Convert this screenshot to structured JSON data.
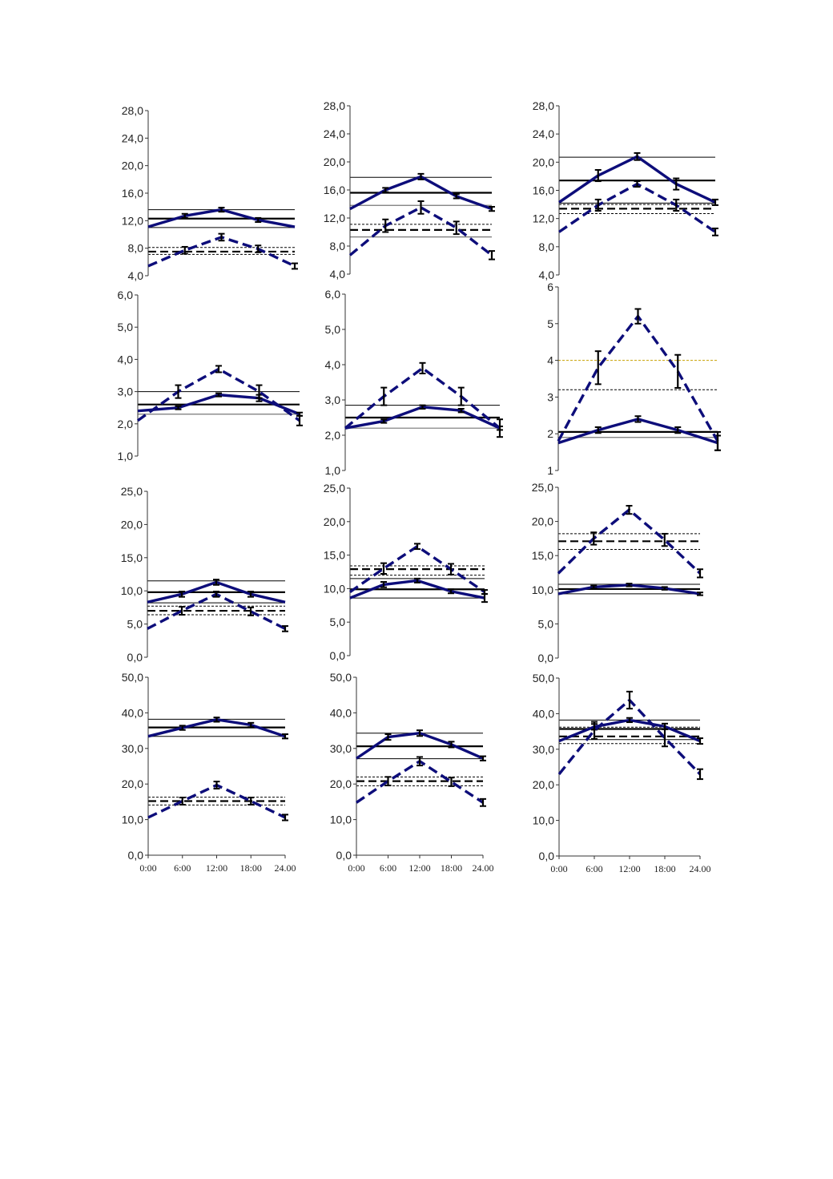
{
  "colors": {
    "series": "#0d0d7a",
    "ref": "#000000",
    "ref_gray": "#777777",
    "ref_yellow": "#c8a000"
  },
  "x_tick_labels": {
    "left": [
      "0:00",
      "6:00",
      "12:00",
      "18:00",
      "24.00"
    ],
    "middle": [
      "0:00",
      "6:00",
      "12:00",
      "18:00",
      "24.00"
    ],
    "right": [
      "0:00",
      "6:00",
      "12:00",
      "18:00",
      "24.00"
    ]
  },
  "chart_data": [
    {
      "type": "line",
      "ylim": [
        4,
        28
      ],
      "yticks": [
        "4,0",
        "8,0",
        "12,0",
        "16,0",
        "20,0",
        "24,0",
        "28,0"
      ],
      "x": [
        0,
        6,
        12,
        18,
        24
      ],
      "series": [
        {
          "style": "solid",
          "values": [
            11.1,
            12.7,
            13.6,
            12.1,
            11.1
          ],
          "errors": [
            0,
            0.3,
            0.3,
            0.3,
            0
          ]
        },
        {
          "style": "dashed",
          "values": [
            5.4,
            7.7,
            9.6,
            7.9,
            5.4
          ],
          "errors": [
            0,
            0.5,
            0.5,
            0.5,
            0.4
          ]
        }
      ],
      "refs": [
        {
          "y": 13.6,
          "style": "thin"
        },
        {
          "y": 12.3,
          "style": "thick"
        },
        {
          "y": 11.0,
          "style": "thin"
        },
        {
          "y": 8.1,
          "style": "thin-dashed"
        },
        {
          "y": 7.5,
          "style": "thick-dashed"
        },
        {
          "y": 7.1,
          "style": "thin-dashed"
        }
      ]
    },
    {
      "type": "line",
      "ylim": [
        4,
        28
      ],
      "yticks": [
        "4,0",
        "8,0",
        "12,0",
        "16,0",
        "20,0",
        "24,0",
        "28,0"
      ],
      "x": [
        0,
        6,
        12,
        18,
        24
      ],
      "series": [
        {
          "style": "solid",
          "values": [
            13.3,
            16.0,
            17.9,
            15.1,
            13.3
          ],
          "errors": [
            0,
            0.3,
            0.4,
            0.3,
            0.3
          ]
        },
        {
          "style": "dashed",
          "values": [
            6.7,
            10.9,
            13.5,
            10.6,
            6.7
          ],
          "errors": [
            0,
            0.9,
            0.9,
            0.9,
            0.6
          ]
        }
      ],
      "refs": [
        {
          "y": 17.8,
          "style": "thin"
        },
        {
          "y": 15.6,
          "style": "thick"
        },
        {
          "y": 13.8,
          "style": "thin-gray"
        },
        {
          "y": 11.1,
          "style": "thin-dashed"
        },
        {
          "y": 10.3,
          "style": "thick-dashed"
        },
        {
          "y": 9.3,
          "style": "thin-gray"
        }
      ]
    },
    {
      "type": "line",
      "ylim": [
        4,
        28
      ],
      "yticks": [
        "4,0",
        "8,0",
        "12,0",
        "16,0",
        "20,0",
        "24,0",
        "28,0"
      ],
      "x": [
        0,
        6,
        12,
        18,
        24
      ],
      "series": [
        {
          "style": "solid",
          "values": [
            14.3,
            18.1,
            20.8,
            16.9,
            14.3
          ],
          "errors": [
            0,
            0.8,
            0.5,
            0.8,
            0.4
          ]
        },
        {
          "style": "dashed",
          "values": [
            10.1,
            13.9,
            16.9,
            13.9,
            10.1
          ],
          "errors": [
            0,
            0.8,
            0.4,
            0.8,
            0.5
          ]
        }
      ],
      "refs": [
        {
          "y": 20.7,
          "style": "thin"
        },
        {
          "y": 17.4,
          "style": "thick"
        },
        {
          "y": 14.2,
          "style": "thin"
        },
        {
          "y": 14.0,
          "style": "thin-dashed"
        },
        {
          "y": 13.4,
          "style": "thick-dashed"
        },
        {
          "y": 12.7,
          "style": "thin-dashed"
        }
      ]
    },
    {
      "type": "line",
      "ylim": [
        1,
        6
      ],
      "yticks": [
        "1,0",
        "2,0",
        "3,0",
        "4,0",
        "5,0",
        "6,0"
      ],
      "x": [
        0,
        6,
        12,
        18,
        24
      ],
      "series": [
        {
          "style": "solid",
          "values": [
            2.4,
            2.5,
            2.9,
            2.8,
            2.3
          ],
          "errors": [
            0,
            0.05,
            0.05,
            0.1,
            0.05
          ]
        },
        {
          "style": "dashed",
          "values": [
            2.1,
            3.0,
            3.7,
            3.0,
            2.1
          ],
          "errors": [
            0,
            0.2,
            0.1,
            0.2,
            0.15
          ]
        }
      ],
      "refs": [
        {
          "y": 3.0,
          "style": "thin"
        },
        {
          "y": 2.6,
          "style": "thick"
        },
        {
          "y": 2.3,
          "style": "thin-gray"
        }
      ]
    },
    {
      "type": "line",
      "ylim": [
        1,
        6
      ],
      "yticks": [
        "1,0",
        "2,0",
        "3,0",
        "4,0",
        "5,0",
        "6,0"
      ],
      "x": [
        0,
        6,
        12,
        18,
        24
      ],
      "series": [
        {
          "style": "solid",
          "values": [
            2.2,
            2.4,
            2.8,
            2.7,
            2.2
          ],
          "errors": [
            0,
            0.05,
            0.05,
            0.05,
            0.05
          ]
        },
        {
          "style": "dashed",
          "values": [
            2.2,
            3.1,
            3.9,
            3.1,
            2.2
          ],
          "errors": [
            0,
            0.25,
            0.15,
            0.25,
            0.25
          ]
        }
      ],
      "refs": [
        {
          "y": 2.85,
          "style": "thin"
        },
        {
          "y": 2.5,
          "style": "thick"
        },
        {
          "y": 2.2,
          "style": "thin-gray"
        }
      ]
    },
    {
      "type": "line",
      "ylim": [
        1,
        6
      ],
      "yticks": [
        "1",
        "2",
        "3",
        "4",
        "5",
        "6"
      ],
      "x": [
        0,
        6,
        12,
        18,
        24
      ],
      "series": [
        {
          "style": "solid",
          "values": [
            1.75,
            2.1,
            2.4,
            2.1,
            1.75
          ],
          "errors": [
            0,
            0.08,
            0.08,
            0.08,
            0.2
          ]
        },
        {
          "style": "dashed",
          "values": [
            1.8,
            3.8,
            5.2,
            3.7,
            1.8
          ],
          "errors": [
            0,
            0.45,
            0.2,
            0.45,
            0.25
          ]
        }
      ],
      "refs": [
        {
          "y": 4.0,
          "style": "thin-yellow"
        },
        {
          "y": 3.2,
          "style": "thin-dashed"
        },
        {
          "y": 2.05,
          "style": "thick"
        },
        {
          "y": 1.9,
          "style": "thin-gray"
        }
      ]
    },
    {
      "type": "line",
      "ylim": [
        0,
        25
      ],
      "yticks": [
        "0,0",
        "5,0",
        "10,0",
        "15,0",
        "20,0",
        "25,0"
      ],
      "x": [
        0,
        6,
        12,
        18,
        24
      ],
      "series": [
        {
          "style": "solid",
          "values": [
            8.3,
            9.5,
            11.3,
            9.5,
            8.3
          ],
          "errors": [
            0,
            0.4,
            0.4,
            0.4,
            0
          ]
        },
        {
          "style": "dashed",
          "values": [
            4.3,
            7.0,
            9.5,
            6.9,
            4.3
          ],
          "errors": [
            0,
            0.6,
            0.4,
            0.6,
            0.4
          ]
        }
      ],
      "refs": [
        {
          "y": 11.5,
          "style": "thin"
        },
        {
          "y": 9.8,
          "style": "thick"
        },
        {
          "y": 8.2,
          "style": "thin"
        },
        {
          "y": 7.7,
          "style": "thin-dashed"
        },
        {
          "y": 7.0,
          "style": "thick-dashed"
        },
        {
          "y": 6.4,
          "style": "thin-dashed"
        }
      ]
    },
    {
      "type": "line",
      "ylim": [
        0,
        25
      ],
      "yticks": [
        "0,0",
        "5,0",
        "10,0",
        "15,0",
        "20,0",
        "25,0"
      ],
      "x": [
        0,
        6,
        12,
        18,
        24
      ],
      "series": [
        {
          "style": "solid",
          "values": [
            8.6,
            10.6,
            11.2,
            9.6,
            8.6
          ],
          "errors": [
            0,
            0.4,
            0.3,
            0.3,
            0.6
          ]
        },
        {
          "style": "dashed",
          "values": [
            9.5,
            13.0,
            16.3,
            12.9,
            9.5
          ],
          "errors": [
            0,
            0.8,
            0.4,
            0.8,
            0.3
          ]
        }
      ],
      "refs": [
        {
          "y": 13.4,
          "style": "thin-dashed"
        },
        {
          "y": 12.9,
          "style": "thick-dashed"
        },
        {
          "y": 12.0,
          "style": "thin-dashed"
        },
        {
          "y": 11.5,
          "style": "thin"
        },
        {
          "y": 9.9,
          "style": "thick"
        },
        {
          "y": 8.6,
          "style": "thin"
        }
      ]
    },
    {
      "type": "line",
      "ylim": [
        0,
        25
      ],
      "yticks": [
        "0,0",
        "5,0",
        "10,0",
        "15,0",
        "20,0",
        "25,0"
      ],
      "x": [
        0,
        6,
        12,
        18,
        24
      ],
      "series": [
        {
          "style": "solid",
          "values": [
            9.4,
            10.4,
            10.7,
            10.2,
            9.4
          ],
          "errors": [
            0,
            0.2,
            0.2,
            0.2,
            0.2
          ]
        },
        {
          "style": "dashed",
          "values": [
            12.4,
            17.5,
            21.7,
            17.3,
            12.4
          ],
          "errors": [
            0,
            0.9,
            0.6,
            0.9,
            0.6
          ]
        }
      ],
      "refs": [
        {
          "y": 18.2,
          "style": "thin-dashed"
        },
        {
          "y": 17.1,
          "style": "thick-dashed"
        },
        {
          "y": 15.9,
          "style": "thin-dashed"
        },
        {
          "y": 10.8,
          "style": "thin"
        },
        {
          "y": 10.1,
          "style": "thick"
        },
        {
          "y": 9.4,
          "style": "thin"
        }
      ]
    },
    {
      "type": "line",
      "ylim": [
        0,
        50
      ],
      "yticks": [
        "0,0",
        "10,0",
        "20,0",
        "30,0",
        "40,0",
        "50,0"
      ],
      "x": [
        0,
        6,
        12,
        18,
        24
      ],
      "series": [
        {
          "style": "solid",
          "values": [
            33.4,
            35.8,
            38.1,
            36.6,
            33.4
          ],
          "errors": [
            0,
            0.6,
            0.6,
            0.6,
            0.6
          ]
        },
        {
          "style": "dashed",
          "values": [
            10.6,
            15.2,
            19.7,
            15.2,
            10.6
          ],
          "errors": [
            0,
            1.0,
            1.0,
            1.0,
            0.8
          ]
        }
      ],
      "refs": [
        {
          "y": 38.2,
          "style": "thin"
        },
        {
          "y": 35.9,
          "style": "thick"
        },
        {
          "y": 33.4,
          "style": "thin"
        },
        {
          "y": 16.3,
          "style": "thin-dashed"
        },
        {
          "y": 15.2,
          "style": "thick-dashed"
        },
        {
          "y": 14.1,
          "style": "thin-dashed"
        }
      ]
    },
    {
      "type": "line",
      "ylim": [
        0,
        50
      ],
      "yticks": [
        "0,0",
        "10,0",
        "20,0",
        "30,0",
        "40,0",
        "50,0"
      ],
      "x": [
        0,
        6,
        12,
        18,
        24
      ],
      "series": [
        {
          "style": "solid",
          "values": [
            27.2,
            33.2,
            34.3,
            31.1,
            27.2
          ],
          "errors": [
            0,
            0.8,
            0.8,
            0.8,
            0.6
          ]
        },
        {
          "style": "dashed",
          "values": [
            14.8,
            20.8,
            26.4,
            20.6,
            14.8
          ],
          "errors": [
            0,
            1.2,
            1.2,
            1.2,
            1.0
          ]
        }
      ],
      "refs": [
        {
          "y": 34.3,
          "style": "thin"
        },
        {
          "y": 30.6,
          "style": "thick"
        },
        {
          "y": 27.1,
          "style": "thin"
        },
        {
          "y": 22.0,
          "style": "thin-dashed"
        },
        {
          "y": 20.8,
          "style": "thick-dashed"
        },
        {
          "y": 19.5,
          "style": "thin-dashed"
        }
      ]
    },
    {
      "type": "line",
      "ylim": [
        0,
        50
      ],
      "yticks": [
        "0,0",
        "10,0",
        "20,0",
        "30,0",
        "40,0",
        "50,0"
      ],
      "x": [
        0,
        6,
        12,
        18,
        24
      ],
      "series": [
        {
          "style": "solid",
          "values": [
            32.3,
            36.3,
            38.2,
            36.4,
            32.3
          ],
          "errors": [
            0,
            0.8,
            0.6,
            0.8,
            0.8
          ]
        },
        {
          "style": "dashed",
          "values": [
            23.0,
            35.3,
            43.8,
            33.2,
            23.0
          ],
          "errors": [
            0,
            2.4,
            2.4,
            2.4,
            1.4
          ]
        }
      ],
      "refs": [
        {
          "y": 38.2,
          "style": "thin"
        },
        {
          "y": 36.2,
          "style": "thin-dashed"
        },
        {
          "y": 35.7,
          "style": "thick"
        },
        {
          "y": 33.6,
          "style": "thick-dashed"
        },
        {
          "y": 32.7,
          "style": "thin"
        },
        {
          "y": 31.6,
          "style": "thin-dashed"
        }
      ]
    }
  ]
}
